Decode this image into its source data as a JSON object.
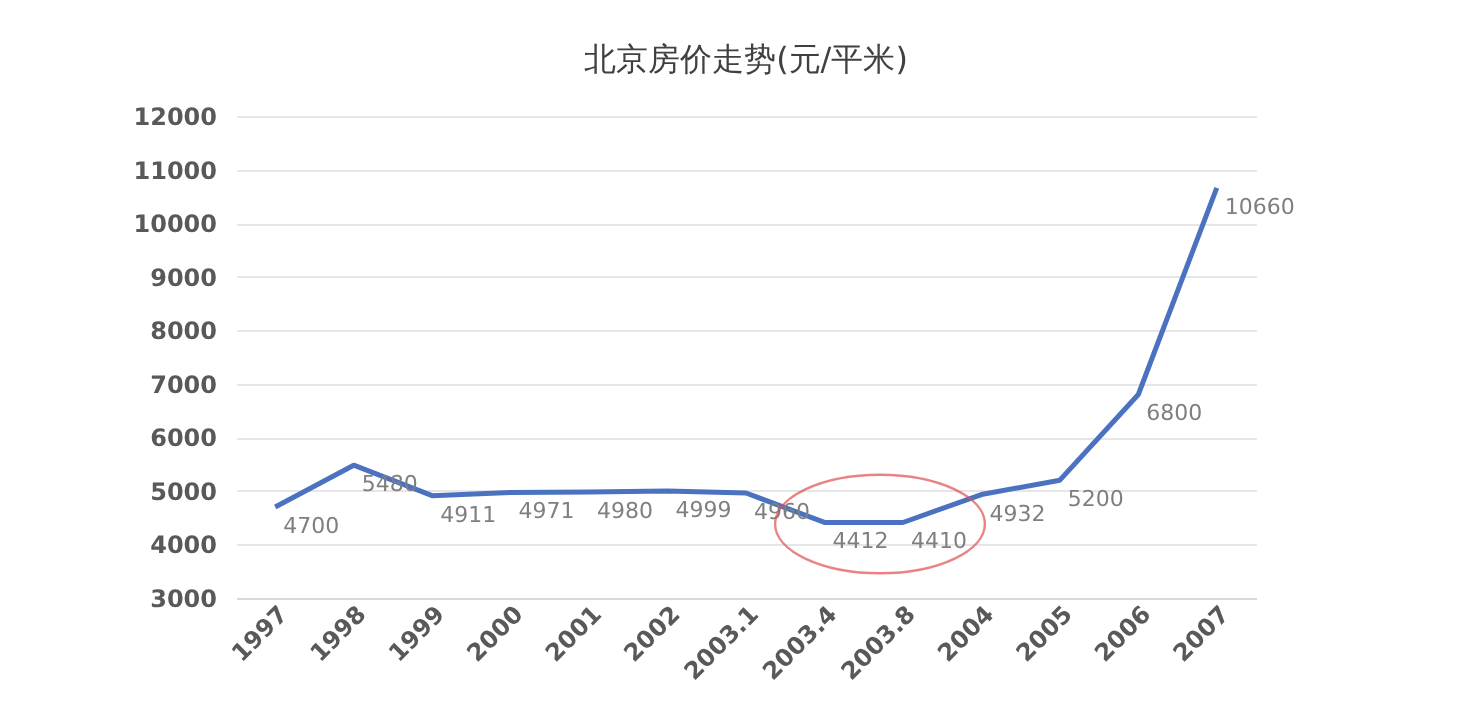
{
  "chart_data": {
    "type": "line",
    "title": "北京房价走势(元/平米)",
    "categories": [
      "1997",
      "1998",
      "1999",
      "2000",
      "2001",
      "2002",
      "2003.1",
      "2003.4",
      "2003.8",
      "2004",
      "2005",
      "2006",
      "2007"
    ],
    "series": [
      {
        "color": "#4a72c0",
        "values": [
          4700,
          5480,
          4911,
          4971,
          4980,
          4999,
          4960,
          4412,
          4410,
          4932,
          5200,
          6800,
          10660
        ]
      }
    ],
    "ylim": [
      3000,
      12000
    ],
    "yticks": [
      3000,
      4000,
      5000,
      6000,
      7000,
      8000,
      9000,
      10000,
      11000,
      12000
    ],
    "grid": "y",
    "data_labels": true,
    "marker": "none",
    "line_style": "solid"
  }
}
